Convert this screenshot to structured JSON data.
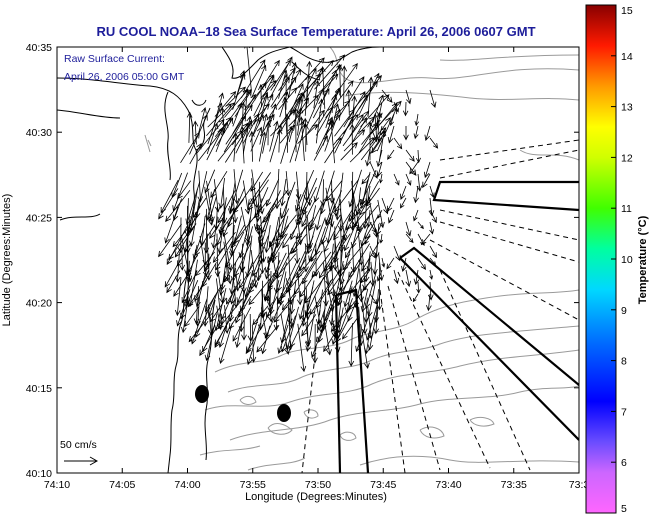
{
  "title": "RU COOL  NOAA–18  Sea Surface Temperature:  April 26, 2006 0607 GMT",
  "annotation": {
    "line1": "Raw Surface Current:",
    "line2": "April 26, 2006 05:00 GMT"
  },
  "axes": {
    "xlabel": "Longitude (Degrees:Minutes)",
    "ylabel": "Latitude (Degrees:Minutes)",
    "x_ticks": [
      "74:10",
      "74:05",
      "74:00",
      "73:55",
      "73:50",
      "73:45",
      "73:40",
      "73:35",
      "73:3"
    ],
    "y_ticks": [
      "40:35",
      "40:30",
      "40:25",
      "40:20",
      "40:15",
      "40:10"
    ]
  },
  "colorbar": {
    "label": "Temperature (°C)",
    "ticks": [
      "15",
      "14",
      "13",
      "12",
      "11",
      "10",
      "9",
      "8",
      "7",
      "6",
      "5"
    ],
    "vmin": 5,
    "vmax": 15
  },
  "scale": {
    "label": "50 cm/s"
  },
  "colors": {
    "title_text": "#1d1d9a",
    "annotation_text": "#1d1d9a",
    "coastline": "#000000",
    "bathymetry": "#9a9a9a",
    "vectors": "#000000"
  }
}
